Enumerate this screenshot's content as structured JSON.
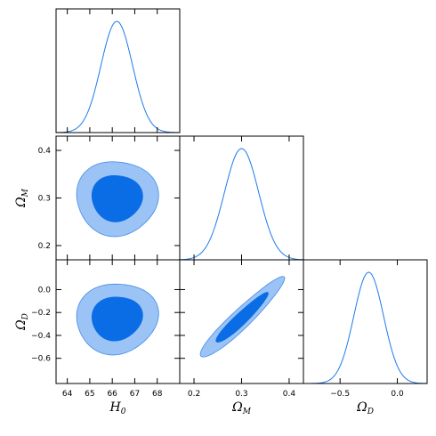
{
  "colors": {
    "line": "#1f7be8",
    "contour_outer": "#9cc3f5",
    "contour_inner": "#0a6de6",
    "contour_edge": "#3f8de8"
  },
  "chart_data": {
    "type": "corner",
    "parameters": [
      {
        "key": "H0",
        "label_base": "H",
        "label_sub": "0",
        "range": [
          63.5,
          69.0
        ],
        "ticks": [
          64,
          65,
          66,
          67,
          68
        ],
        "tick_labels": [
          "64",
          "65",
          "66",
          "67",
          "68"
        ],
        "mean": 66.2,
        "sigma": 0.7
      },
      {
        "key": "OmegaM",
        "label_base": "Ω",
        "label_sub": "M",
        "range": [
          0.17,
          0.43
        ],
        "ticks": [
          0.2,
          0.3,
          0.4
        ],
        "tick_labels": [
          "0.2",
          "0.3",
          "0.4"
        ],
        "mean": 0.3,
        "sigma": 0.036
      },
      {
        "key": "OmegaD",
        "label_base": "Ω",
        "label_sub": "D",
        "range": [
          -0.82,
          0.26
        ],
        "ticks": [
          -0.5,
          0.0
        ],
        "tick_labels": [
          "−0.5",
          "0.0"
        ],
        "y_ticks": [
          -0.6,
          -0.4,
          -0.2,
          0.0
        ],
        "y_tick_labels": [
          "−0.6",
          "−0.4",
          "−0.2",
          "0.0"
        ],
        "mean": -0.25,
        "sigma": 0.13
      }
    ],
    "contours_2d": [
      {
        "x": "H0",
        "y": "OmegaM",
        "correlation": 0.0,
        "center": [
          66.2,
          0.3
        ],
        "sigma": [
          0.72,
          0.033
        ]
      },
      {
        "x": "H0",
        "y": "OmegaD",
        "correlation": 0.05,
        "center": [
          66.2,
          -0.25
        ],
        "sigma": [
          0.72,
          0.13
        ]
      },
      {
        "x": "OmegaM",
        "y": "OmegaD",
        "correlation": 0.94,
        "center": [
          0.3,
          -0.25
        ],
        "sigma": [
          0.035,
          0.14
        ]
      }
    ],
    "levels": [
      "68%",
      "95%"
    ]
  }
}
